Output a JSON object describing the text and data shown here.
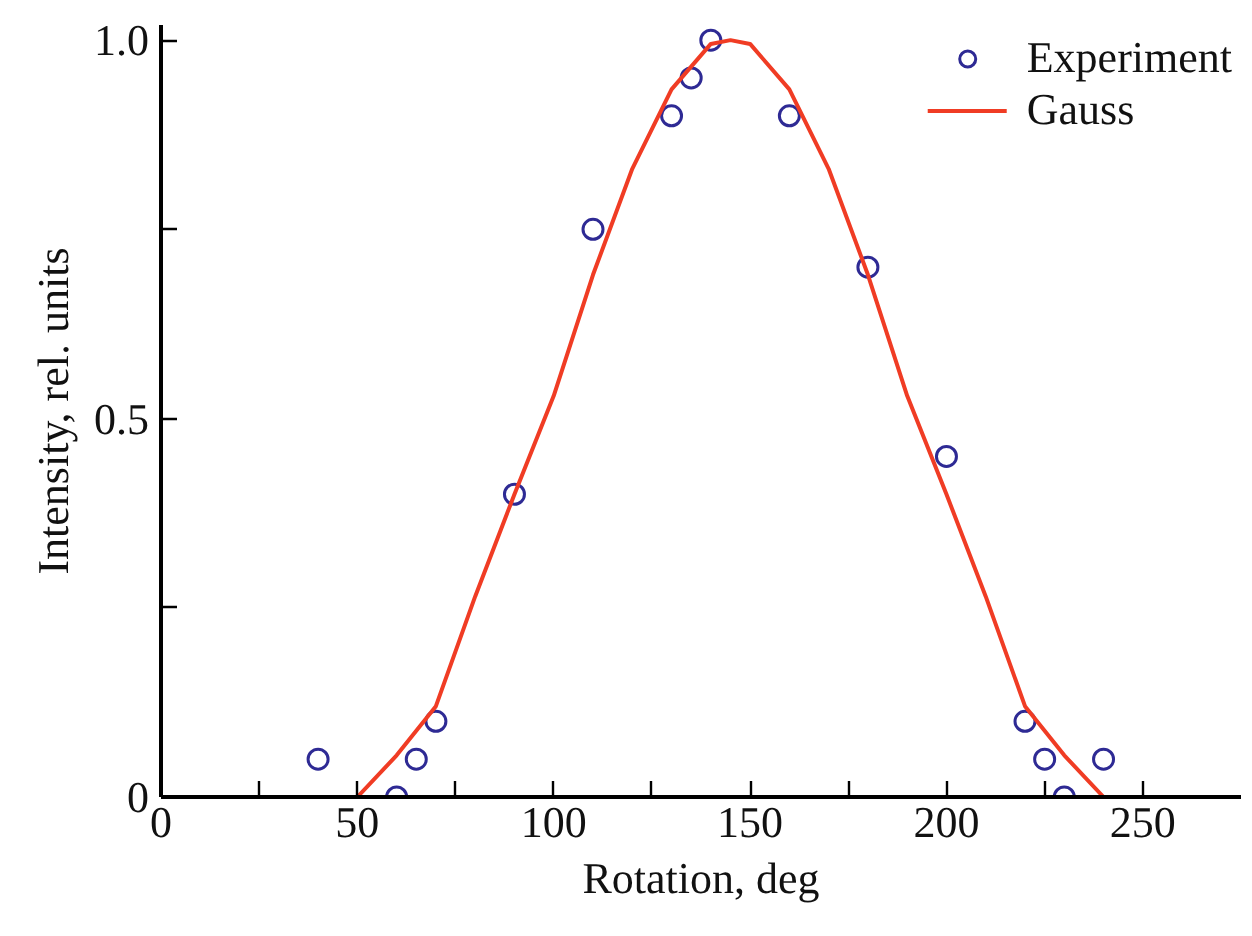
{
  "chart_data": {
    "type": "scatter",
    "xlabel": "Rotation, deg",
    "ylabel": "Intensity, rel. units",
    "xlim": [
      0,
      275
    ],
    "ylim": [
      0,
      1.02
    ],
    "xticks": [
      0,
      {
        "value": 25,
        "label": null
      },
      50,
      {
        "value": 75,
        "label": null
      },
      100,
      {
        "value": 125,
        "label": null
      },
      150,
      {
        "value": 175,
        "label": null
      },
      200,
      {
        "value": 225,
        "label": null
      },
      250
    ],
    "yticks": [
      0,
      {
        "value": 0.25,
        "label": null
      },
      {
        "value": 0.5,
        "label": "0.5"
      },
      {
        "value": 0.75,
        "label": null
      },
      {
        "value": 1.0,
        "label": "1.0"
      }
    ],
    "grid": false,
    "legend": "top right",
    "series": [
      {
        "name": "Experiment",
        "marker": "circle",
        "color": "#2e2a94",
        "x": [
          40,
          60,
          65,
          70,
          90,
          110,
          130,
          135,
          140,
          160,
          180,
          200,
          220,
          225,
          230,
          240
        ],
        "values": [
          0.05,
          0,
          0.05,
          0.1,
          0.4,
          0.75,
          0.9,
          0.95,
          1.0,
          0.9,
          0.7,
          0.45,
          0.1,
          0.05,
          0,
          0.05
        ]
      },
      {
        "name": "Gauss",
        "type": "line",
        "color": "#f03c24",
        "line_style": "solid",
        "x": [
          50,
          60,
          70,
          80,
          90,
          100,
          110,
          120,
          130,
          140,
          145,
          150,
          160,
          170,
          180,
          190,
          200,
          210,
          220,
          230,
          240
        ],
        "values": [
          0,
          0.055,
          0.12,
          0.265,
          0.4,
          0.53,
          0.69,
          0.83,
          0.935,
          0.995,
          1.0,
          0.995,
          0.935,
          0.83,
          0.69,
          0.53,
          0.4,
          0.265,
          0.12,
          0.055,
          0
        ]
      }
    ]
  }
}
